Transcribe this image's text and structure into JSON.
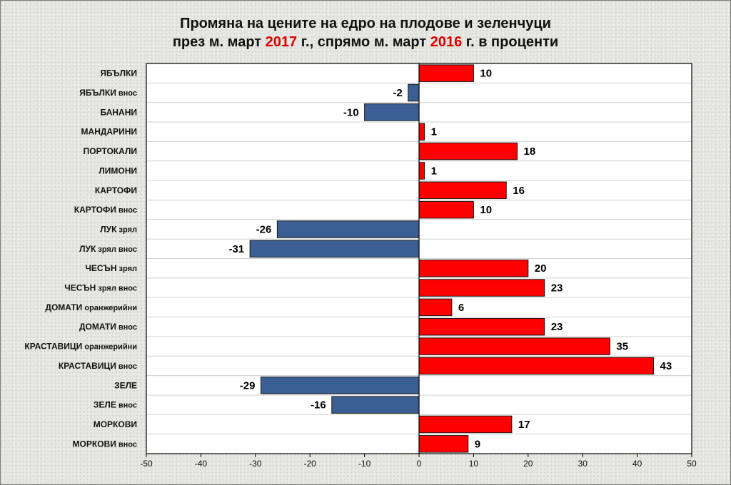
{
  "chart_data": {
    "type": "bar",
    "orientation": "horizontal",
    "title_line1": "Промяна на цените на едро на плодове и зеленчуци",
    "title_line2_a": "през м. март ",
    "title_line2_year1": "2017",
    "title_line2_b": " г., спрямо м. март ",
    "title_line2_year2": "2016",
    "title_line2_c": " г. в проценти",
    "categories": [
      [
        "ЯБЪЛКИ",
        ""
      ],
      [
        "ЯБЪЛКИ",
        " внос"
      ],
      [
        "БАНАНИ",
        ""
      ],
      [
        "МАНДАРИНИ",
        ""
      ],
      [
        "ПОРТОКАЛИ",
        ""
      ],
      [
        "ЛИМОНИ",
        ""
      ],
      [
        "КАРТОФИ",
        ""
      ],
      [
        "КАРТОФИ",
        " внос"
      ],
      [
        "ЛУК",
        " зрял"
      ],
      [
        "ЛУК",
        " зрял внос"
      ],
      [
        "ЧЕСЪН",
        " зрял"
      ],
      [
        "ЧЕСЪН",
        " зрял внос"
      ],
      [
        "ДОМАТИ",
        " оранжерийни"
      ],
      [
        "ДОМАТИ",
        " внос"
      ],
      [
        "КРАСТАВИЦИ",
        " оранжерийни"
      ],
      [
        "КРАСТАВИЦИ",
        " внос"
      ],
      [
        "ЗЕЛЕ",
        ""
      ],
      [
        "ЗЕЛЕ",
        " внос"
      ],
      [
        "МОРКОВИ",
        ""
      ],
      [
        "МОРКОВИ",
        " внос"
      ]
    ],
    "values": [
      10,
      -2,
      -10,
      1,
      18,
      1,
      16,
      10,
      -26,
      -31,
      20,
      23,
      6,
      23,
      35,
      43,
      -29,
      -16,
      17,
      9
    ],
    "xlim": [
      -50,
      50
    ],
    "xticks": [
      -50,
      -40,
      -30,
      -20,
      -10,
      0,
      10,
      20,
      30,
      40,
      50
    ],
    "grid": "horizontal",
    "colors": {
      "positive": "#ff0000",
      "negative": "#3b5e94",
      "title_accent": "#e00000"
    }
  }
}
